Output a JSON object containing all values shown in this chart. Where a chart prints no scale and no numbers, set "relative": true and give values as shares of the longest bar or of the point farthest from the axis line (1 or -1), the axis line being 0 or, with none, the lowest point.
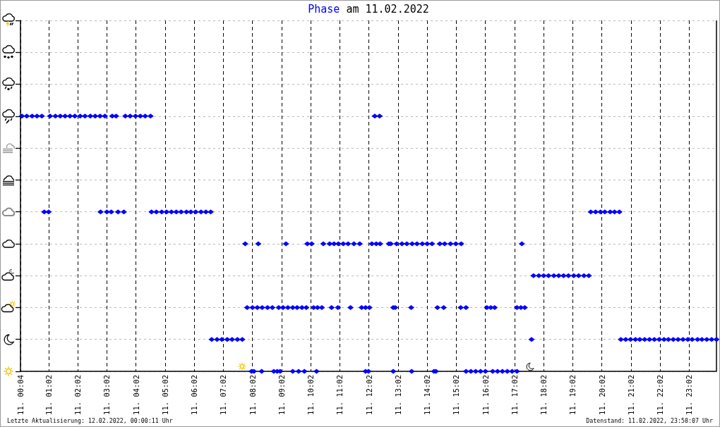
{
  "chart_data": {
    "type": "scatter",
    "title": "Phase am 11.02.2022",
    "annotations": [
      "Letzte Aktualisierung: 12.02.2022, 00:00:11 Uhr",
      "Datenstand: 11.02.2022, 23:58:07 Uhr"
    ],
    "xlim": [
      "2022-02-11T00:04",
      "2022-02-11T23:58"
    ],
    "xticks": [
      {
        "value": "2022-02-11T00:04",
        "label": "11. 00:04"
      },
      {
        "value": "2022-02-11T01:02",
        "label": "11. 01:02"
      },
      {
        "value": "2022-02-11T02:02",
        "label": "11. 02:02"
      },
      {
        "value": "2022-02-11T03:02",
        "label": "11. 03:02"
      },
      {
        "value": "2022-02-11T04:02",
        "label": "11. 04:02"
      },
      {
        "value": "2022-02-11T05:02",
        "label": "11. 05:02"
      },
      {
        "value": "2022-02-11T06:02",
        "label": "11. 06:02"
      },
      {
        "value": "2022-02-11T07:02",
        "label": "11. 07:02"
      },
      {
        "value": "2022-02-11T08:02",
        "label": "11. 08:02"
      },
      {
        "value": "2022-02-11T09:02",
        "label": "11. 09:02"
      },
      {
        "value": "2022-02-11T10:02",
        "label": "11. 10:02"
      },
      {
        "value": "2022-02-11T11:02",
        "label": "11. 11:02"
      },
      {
        "value": "2022-02-11T12:02",
        "label": "11. 12:02"
      },
      {
        "value": "2022-02-11T13:02",
        "label": "11. 13:02"
      },
      {
        "value": "2022-02-11T14:02",
        "label": "11. 14:02"
      },
      {
        "value": "2022-02-11T15:02",
        "label": "11. 15:02"
      },
      {
        "value": "2022-02-11T16:02",
        "label": "11. 16:02"
      },
      {
        "value": "2022-02-11T17:02",
        "label": "11. 17:02"
      },
      {
        "value": "2022-02-11T18:02",
        "label": "11. 18:02"
      },
      {
        "value": "2022-02-11T19:02",
        "label": "11. 19:02"
      },
      {
        "value": "2022-02-11T20:02",
        "label": "11. 20:02"
      },
      {
        "value": "2022-02-11T21:02",
        "label": "11. 21:02"
      },
      {
        "value": "2022-02-11T22:02",
        "label": "11. 22:02"
      },
      {
        "value": "2022-02-11T23:02",
        "label": "11. 23:02"
      }
    ],
    "relative": true,
    "tick_labels": "x",
    "grid": true,
    "marker": "diamond",
    "series": [
      {
        "color": "#0000ff",
        "x": [
          "2022-02-11T00:07",
          "2022-02-11T00:17",
          "2022-02-11T00:28",
          "2022-02-11T00:38",
          "2022-02-11T00:48",
          "2022-02-11T01:05",
          "2022-02-11T01:16",
          "2022-02-11T01:26",
          "2022-02-11T01:36",
          "2022-02-11T01:46",
          "2022-02-11T01:56",
          "2022-02-11T02:07",
          "2022-02-11T02:17",
          "2022-02-11T02:28",
          "2022-02-11T02:38",
          "2022-02-11T02:48",
          "2022-02-11T02:58",
          "2022-02-11T03:13",
          "2022-02-11T03:21",
          "2022-02-11T03:40",
          "2022-02-11T03:50",
          "2022-02-11T04:01",
          "2022-02-11T04:11",
          "2022-02-11T04:21",
          "2022-02-11T04:32",
          "2022-02-11T12:14",
          "2022-02-11T12:24",
          "2022-02-11T00:53",
          "2022-02-11T01:02",
          "2022-02-11T02:49",
          "2022-02-11T03:02",
          "2022-02-11T03:11",
          "2022-02-11T03:25",
          "2022-02-11T03:37",
          "2022-02-11T04:34",
          "2022-02-11T04:44",
          "2022-02-11T04:55",
          "2022-02-11T05:05",
          "2022-02-11T05:15",
          "2022-02-11T05:25",
          "2022-02-11T05:35",
          "2022-02-11T05:46",
          "2022-02-11T05:55",
          "2022-02-11T06:05",
          "2022-02-11T06:16",
          "2022-02-11T06:26",
          "2022-02-11T06:36",
          "2022-02-11T19:39",
          "2022-02-11T19:49",
          "2022-02-11T19:59",
          "2022-02-11T20:08",
          "2022-02-11T20:19",
          "2022-02-11T20:28",
          "2022-02-11T20:38",
          "2022-02-11T06:38",
          "2022-02-11T06:49",
          "2022-02-11T06:59",
          "2022-02-11T07:10",
          "2022-02-11T07:20",
          "2022-02-11T07:31",
          "2022-02-11T07:41",
          "2022-02-11T17:37",
          "2022-02-11T20:41",
          "2022-02-11T20:51",
          "2022-02-11T21:01",
          "2022-02-11T21:11",
          "2022-02-11T21:20",
          "2022-02-11T21:30",
          "2022-02-11T21:40",
          "2022-02-11T21:50",
          "2022-02-11T22:00",
          "2022-02-11T22:10",
          "2022-02-11T22:19",
          "2022-02-11T22:29",
          "2022-02-11T22:39",
          "2022-02-11T22:49",
          "2022-02-11T22:59",
          "2022-02-11T23:08",
          "2022-02-11T23:19",
          "2022-02-11T23:28",
          "2022-02-11T23:38",
          "2022-02-11T23:48",
          "2022-02-11T23:58",
          "2022-02-11T07:47",
          "2022-02-11T08:14",
          "2022-02-11T09:11",
          "2022-02-11T09:55",
          "2022-02-11T10:04",
          "2022-02-11T10:28",
          "2022-02-11T10:41",
          "2022-02-11T10:50",
          "2022-02-11T10:59",
          "2022-02-11T11:09",
          "2022-02-11T11:19",
          "2022-02-11T11:31",
          "2022-02-11T11:43",
          "2022-02-11T12:08",
          "2022-02-11T12:17",
          "2022-02-11T12:25",
          "2022-02-11T12:43",
          "2022-02-11T12:47",
          "2022-02-11T12:59",
          "2022-02-11T13:10",
          "2022-02-11T13:20",
          "2022-02-11T13:31",
          "2022-02-11T13:41",
          "2022-02-11T13:52",
          "2022-02-11T14:02",
          "2022-02-11T14:12",
          "2022-02-11T14:28",
          "2022-02-11T14:38",
          "2022-02-11T14:50",
          "2022-02-11T15:01",
          "2022-02-11T15:12",
          "2022-02-11T17:17",
          "2022-02-11T07:51",
          "2022-02-11T08:02",
          "2022-02-11T08:12",
          "2022-02-11T08:22",
          "2022-02-11T08:33",
          "2022-02-11T08:43",
          "2022-02-11T08:56",
          "2022-02-11T09:05",
          "2022-02-11T09:15",
          "2022-02-11T09:25",
          "2022-02-11T09:34",
          "2022-02-11T09:44",
          "2022-02-11T09:53",
          "2022-02-11T10:08",
          "2022-02-11T10:16",
          "2022-02-11T10:25",
          "2022-02-11T10:45",
          "2022-02-11T10:58",
          "2022-02-11T11:24",
          "2022-02-11T11:47",
          "2022-02-11T11:55",
          "2022-02-11T12:03",
          "2022-02-11T12:52",
          "2022-02-11T12:56",
          "2022-02-11T13:29",
          "2022-02-11T14:23",
          "2022-02-11T14:36",
          "2022-02-11T15:11",
          "2022-02-11T15:22",
          "2022-02-11T16:05",
          "2022-02-11T16:13",
          "2022-02-11T16:21",
          "2022-02-11T17:07",
          "2022-02-11T17:15",
          "2022-02-11T17:23",
          "2022-02-11T17:41",
          "2022-02-11T17:52",
          "2022-02-11T18:02",
          "2022-02-11T18:12",
          "2022-02-11T18:23",
          "2022-02-11T18:33",
          "2022-02-11T18:43",
          "2022-02-11T18:53",
          "2022-02-11T19:04",
          "2022-02-11T19:14",
          "2022-02-11T19:25",
          "2022-02-11T19:35",
          "2022-02-11T08:00",
          "2022-02-11T08:05",
          "2022-02-11T08:21",
          "2022-02-11T08:46",
          "2022-02-11T08:53",
          "2022-02-11T08:59",
          "2022-02-11T09:25",
          "2022-02-11T09:37",
          "2022-02-11T09:49",
          "2022-02-11T10:14",
          "2022-02-11T11:55",
          "2022-02-11T12:01",
          "2022-02-11T12:52",
          "2022-02-11T13:30",
          "2022-02-11T14:16",
          "2022-02-11T14:20",
          "2022-02-11T15:22",
          "2022-02-11T15:32",
          "2022-02-11T15:42",
          "2022-02-11T15:52",
          "2022-02-11T16:02",
          "2022-02-11T16:17",
          "2022-02-11T16:27",
          "2022-02-11T16:37",
          "2022-02-11T16:47",
          "2022-02-11T16:57",
          "2022-02-11T17:07"
        ],
        "values": [
          1,
          1,
          1,
          1,
          1,
          1,
          1,
          1,
          1,
          1,
          1,
          1,
          1,
          1,
          1,
          1,
          1,
          1,
          1,
          1,
          1,
          1,
          1,
          1,
          1,
          1,
          1,
          0.625,
          0.625,
          0.625,
          0.625,
          0.625,
          0.625,
          0.625,
          0.625,
          0.625,
          0.625,
          0.625,
          0.625,
          0.625,
          0.625,
          0.625,
          0.625,
          0.625,
          0.625,
          0.625,
          0.625,
          0.625,
          0.625,
          0.625,
          0.625,
          0.625,
          0.625,
          0.625,
          0.125,
          0.125,
          0.125,
          0.125,
          0.125,
          0.125,
          0.125,
          0.125,
          0.125,
          0.125,
          0.125,
          0.125,
          0.125,
          0.125,
          0.125,
          0.125,
          0.125,
          0.125,
          0.125,
          0.125,
          0.125,
          0.125,
          0.125,
          0.125,
          0.125,
          0.125,
          0.125,
          0.125,
          0.125,
          0.5,
          0.5,
          0.5,
          0.5,
          0.5,
          0.5,
          0.5,
          0.5,
          0.5,
          0.5,
          0.5,
          0.5,
          0.5,
          0.5,
          0.5,
          0.5,
          0.5,
          0.5,
          0.5,
          0.5,
          0.5,
          0.5,
          0.5,
          0.5,
          0.5,
          0.5,
          0.5,
          0.5,
          0.5,
          0.5,
          0.5,
          0.5,
          0.25,
          0.25,
          0.25,
          0.25,
          0.25,
          0.25,
          0.25,
          0.25,
          0.25,
          0.25,
          0.25,
          0.25,
          0.25,
          0.25,
          0.25,
          0.25,
          0.25,
          0.25,
          0.25,
          0.25,
          0.25,
          0.25,
          0.25,
          0.25,
          0.25,
          0.25,
          0.25,
          0.25,
          0.25,
          0.25,
          0.25,
          0.25,
          0.25,
          0.25,
          0.25,
          0.375,
          0.375,
          0.375,
          0.375,
          0.375,
          0.375,
          0.375,
          0.375,
          0.375,
          0.375,
          0.375,
          0.375,
          0,
          0,
          0,
          0,
          0,
          0,
          0,
          0,
          0,
          0,
          0,
          0,
          0,
          0,
          0,
          0,
          0,
          0,
          0,
          0,
          0,
          0,
          0,
          0,
          0,
          0,
          0
        ]
      }
    ]
  }
}
